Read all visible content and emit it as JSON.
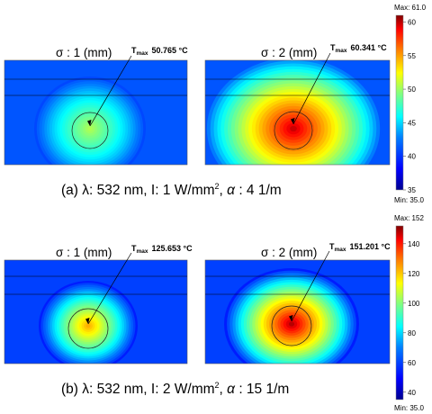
{
  "colors": {
    "colormap": [
      "#00008f",
      "#0000ff",
      "#0080ff",
      "#00ffff",
      "#80ff80",
      "#ffff00",
      "#ff8000",
      "#ff0000",
      "#800000"
    ],
    "annotation_line": "#000000"
  },
  "figure_a": {
    "caption_prefix": "(a) λ: 532 nm, I: 1 W/mm",
    "caption_sup": "2",
    "caption_mid": ", ",
    "caption_alpha": "α",
    "caption_suffix": " : 4 1/m",
    "colorbar": {
      "max_label": "Max: 61.0",
      "min_label": "Min: 35.0",
      "ticks": [
        "60",
        "55",
        "50",
        "45",
        "40",
        "35"
      ],
      "vmin": 35.0,
      "vmax": 61.0
    },
    "panels": [
      {
        "sigma_label": "σ : 1 (mm)",
        "tmax_prefix": "T",
        "tmax_sub": "max",
        "tmax_value": "50.765 °C",
        "peak": 50.765
      },
      {
        "sigma_label": "σ : 2 (mm)",
        "tmax_prefix": "T",
        "tmax_sub": "max",
        "tmax_value": "60.341 °C",
        "peak": 60.341
      }
    ]
  },
  "figure_b": {
    "caption_prefix": "(b) λ: 532 nm, I: 2 W/mm",
    "caption_sup": "2",
    "caption_mid": ", ",
    "caption_alpha": "α",
    "caption_suffix": " : 15 1/m",
    "colorbar": {
      "max_label": "Max: 152",
      "min_label": "Min: 35.0",
      "ticks": [
        "140",
        "120",
        "100",
        "80",
        "60",
        "40"
      ],
      "vmin": 35.0,
      "vmax": 152.0
    },
    "panels": [
      {
        "sigma_label": "σ : 1 (mm)",
        "tmax_prefix": "T",
        "tmax_sub": "max",
        "tmax_value": "125.653 °C",
        "peak": 125.653
      },
      {
        "sigma_label": "σ : 2 (mm)",
        "tmax_prefix": "T",
        "tmax_sub": "max",
        "tmax_value": "151.201 °C",
        "peak": 151.201
      }
    ]
  }
}
